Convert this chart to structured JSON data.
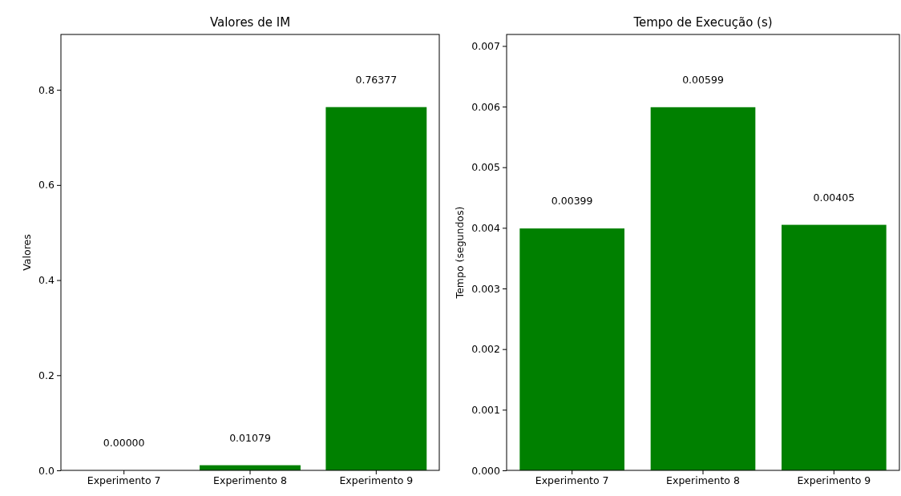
{
  "chart_data": [
    {
      "type": "bar",
      "title": "Valores de IM",
      "ylabel": "Valores",
      "categories": [
        "Experimento 7",
        "Experimento 8",
        "Experimento 9"
      ],
      "values": [
        0,
        0.01079,
        0.76377
      ],
      "value_labels": [
        "0.00000",
        "0.01079",
        "0.76377"
      ],
      "color": "#008000",
      "ylim": [
        0,
        0.9165
      ],
      "yticks": [
        {
          "value": 0,
          "label": "0.0"
        },
        0.2,
        0.4,
        0.6,
        0.8
      ],
      "grid": false
    },
    {
      "type": "bar",
      "title": "Tempo de Execução (s)",
      "ylabel": "Tempo (segundos)",
      "categories": [
        "Experimento 7",
        "Experimento 8",
        "Experimento 9"
      ],
      "values": [
        0.00399,
        0.00599,
        0.00405
      ],
      "value_labels": [
        "0.00399",
        "0.00599",
        "0.00405"
      ],
      "color": "#008000",
      "ylim": [
        0,
        0.00719
      ],
      "yticks": [
        {
          "value": 0,
          "label": "0.000"
        },
        0.001,
        0.002,
        0.003,
        0.004,
        0.005,
        0.006,
        0.007
      ],
      "grid": false
    }
  ]
}
